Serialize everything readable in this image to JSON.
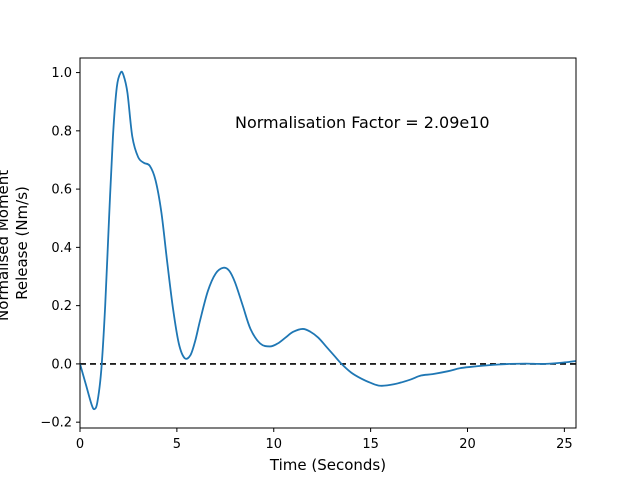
{
  "chart_data": {
    "type": "line",
    "xlabel": "Time (Seconds)",
    "ylabel": "Normalised Moment Release (Nm/s)",
    "ylabel_lines": [
      "Normalised Moment",
      "Release (Nm/s)"
    ],
    "xlim": [
      0,
      25.6
    ],
    "ylim": [
      -0.22,
      1.05
    ],
    "xticks": [
      0,
      5,
      10,
      15,
      20,
      25
    ],
    "yticks": [
      -0.2,
      0.0,
      0.2,
      0.4,
      0.6,
      0.8,
      1.0
    ],
    "xtick_labels": [
      "0",
      "5",
      "10",
      "15",
      "20",
      "25"
    ],
    "ytick_labels": [
      "−0.2",
      "0.0",
      "0.2",
      "0.4",
      "0.6",
      "0.8",
      "1.0"
    ],
    "grid": false,
    "annotation": {
      "text": "Normalisation Factor = 2.09e10",
      "x": 8.0,
      "y": 0.81
    },
    "reference_line": {
      "y": 0.0,
      "style": "dashed",
      "color": "#000000"
    },
    "series": [
      {
        "color": "#1f77b4",
        "x": [
          0,
          0.3,
          0.6,
          0.75,
          0.9,
          1.1,
          1.3,
          1.5,
          1.7,
          1.9,
          2.1,
          2.25,
          2.45,
          2.7,
          3.0,
          3.3,
          3.6,
          3.9,
          4.2,
          4.5,
          4.8,
          5.1,
          5.4,
          5.7,
          5.95,
          6.2,
          6.6,
          7.0,
          7.4,
          7.7,
          8.0,
          8.4,
          8.8,
          9.3,
          9.8,
          10.2,
          10.6,
          11.0,
          11.5,
          11.9,
          12.3,
          12.7,
          13.1,
          13.5,
          14.0,
          14.5,
          15.0,
          15.5,
          16.2,
          17.0,
          17.6,
          18.2,
          19.0,
          19.6,
          20.2,
          21.0,
          21.6,
          22.2,
          23.0,
          24.0,
          25.0,
          25.6
        ],
        "y": [
          0.0,
          -0.07,
          -0.14,
          -0.155,
          -0.13,
          -0.02,
          0.2,
          0.5,
          0.78,
          0.95,
          1.0,
          0.99,
          0.93,
          0.78,
          0.71,
          0.69,
          0.68,
          0.63,
          0.52,
          0.35,
          0.19,
          0.07,
          0.02,
          0.03,
          0.08,
          0.15,
          0.25,
          0.31,
          0.33,
          0.32,
          0.28,
          0.2,
          0.12,
          0.07,
          0.06,
          0.07,
          0.09,
          0.11,
          0.12,
          0.11,
          0.09,
          0.06,
          0.03,
          0.0,
          -0.03,
          -0.05,
          -0.065,
          -0.075,
          -0.07,
          -0.055,
          -0.04,
          -0.035,
          -0.025,
          -0.015,
          -0.01,
          -0.005,
          -0.002,
          0.0,
          0.001,
          0.0,
          0.005,
          0.01
        ]
      }
    ]
  }
}
